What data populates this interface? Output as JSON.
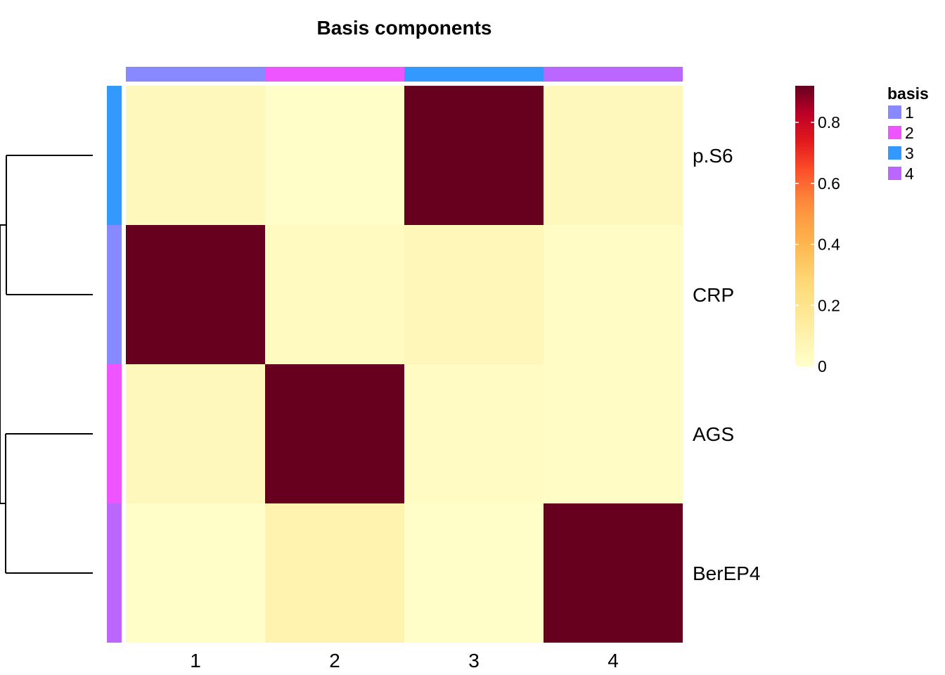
{
  "chart_data": {
    "type": "heatmap",
    "title": "Basis components",
    "columns": [
      "1",
      "2",
      "3",
      "4"
    ],
    "rows": [
      "p.S6",
      "CRP",
      "AGS",
      "BerEP4"
    ],
    "values": [
      [
        0.05,
        0.01,
        0.92,
        0.05
      ],
      [
        0.92,
        0.04,
        0.06,
        0.02
      ],
      [
        0.05,
        0.92,
        0.03,
        0.02
      ],
      [
        0.01,
        0.09,
        0.01,
        0.92
      ]
    ],
    "column_annotation": [
      "1",
      "2",
      "3",
      "4"
    ],
    "row_annotation": [
      "3",
      "1",
      "2",
      "4"
    ],
    "row_dendrogram": true,
    "colorbar": {
      "min": 0,
      "max": 0.92,
      "ticks": [
        "0",
        "0.2",
        "0.4",
        "0.6",
        "0.8"
      ],
      "tick_values": [
        0,
        0.2,
        0.4,
        0.6,
        0.8
      ]
    },
    "legend": {
      "title": "basis",
      "items": [
        {
          "label": "1",
          "color": "#8888FF"
        },
        {
          "label": "2",
          "color": "#EE55FF"
        },
        {
          "label": "3",
          "color": "#3399FF"
        },
        {
          "label": "4",
          "color": "#BB66FF"
        }
      ],
      "placement": "right"
    },
    "colors": {
      "low": "#FFFFCC",
      "high": "#67001F"
    }
  }
}
